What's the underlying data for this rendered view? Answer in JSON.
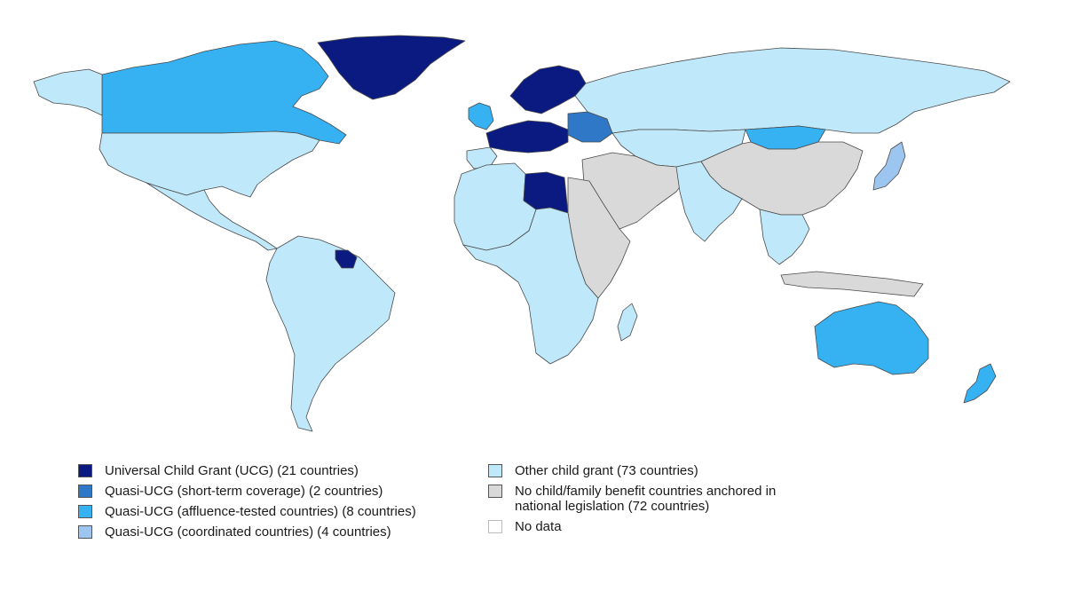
{
  "legend": {
    "items": [
      {
        "key": "ucg",
        "label": "Universal Child Grant (UCG) (21 countries)",
        "color": "#0b1a80"
      },
      {
        "key": "quasi_short",
        "label": "Quasi-UCG (short-term coverage) (2 countries)",
        "color": "#2f78c8"
      },
      {
        "key": "quasi_affluence",
        "label": "Quasi-UCG (affluence-tested countries) (8 countries)",
        "color": "#36b1f2"
      },
      {
        "key": "quasi_coord",
        "label": "Quasi-UCG (coordinated countries) (4 countries)",
        "color": "#9cc6ef"
      },
      {
        "key": "other",
        "label": "Other child grant (73 countries)",
        "color": "#bfe9fb"
      },
      {
        "key": "none",
        "label": "No child/family benefit countries anchored in\nnational legislation (72 countries)",
        "color": "#d9d9d9"
      },
      {
        "key": "nodata",
        "label": "No data",
        "color": "#ffffff"
      }
    ]
  },
  "map": {
    "colors": {
      "ucg": "#0b1a80",
      "quasi_short": "#2f78c8",
      "quasi_affluence": "#36b1f2",
      "quasi_coord": "#9cc6ef",
      "other": "#bfe9fb",
      "none": "#d9d9d9",
      "nodata": "#ffffff"
    },
    "regions": [
      {
        "name": "canada",
        "category": "quasi_affluence"
      },
      {
        "name": "united-states",
        "category": "other"
      },
      {
        "name": "mexico-central-america",
        "category": "other"
      },
      {
        "name": "greenland",
        "category": "ucg"
      },
      {
        "name": "south-america",
        "category": "other"
      },
      {
        "name": "russia",
        "category": "other"
      },
      {
        "name": "nordics",
        "category": "ucg"
      },
      {
        "name": "western-europe",
        "category": "ucg"
      },
      {
        "name": "iberia",
        "category": "other"
      },
      {
        "name": "eastern-europe",
        "category": "quasi_short"
      },
      {
        "name": "north-africa",
        "category": "other"
      },
      {
        "name": "libya",
        "category": "ucg"
      },
      {
        "name": "middle-east",
        "category": "none"
      },
      {
        "name": "central-asia",
        "category": "other"
      },
      {
        "name": "mongolia",
        "category": "quasi_affluence"
      },
      {
        "name": "china",
        "category": "none"
      },
      {
        "name": "india",
        "category": "other"
      },
      {
        "name": "southeast-asia",
        "category": "other"
      },
      {
        "name": "japan",
        "category": "quasi_coord"
      },
      {
        "name": "australia",
        "category": "quasi_affluence"
      },
      {
        "name": "new-zealand",
        "category": "quasi_affluence"
      },
      {
        "name": "sub-saharan-africa",
        "category": "other"
      },
      {
        "name": "east-africa",
        "category": "none"
      },
      {
        "name": "madagascar",
        "category": "other"
      },
      {
        "name": "uk-ireland",
        "category": "quasi_affluence"
      },
      {
        "name": "guyana-suriname",
        "category": "ucg"
      },
      {
        "name": "indonesia",
        "category": "none"
      }
    ]
  }
}
